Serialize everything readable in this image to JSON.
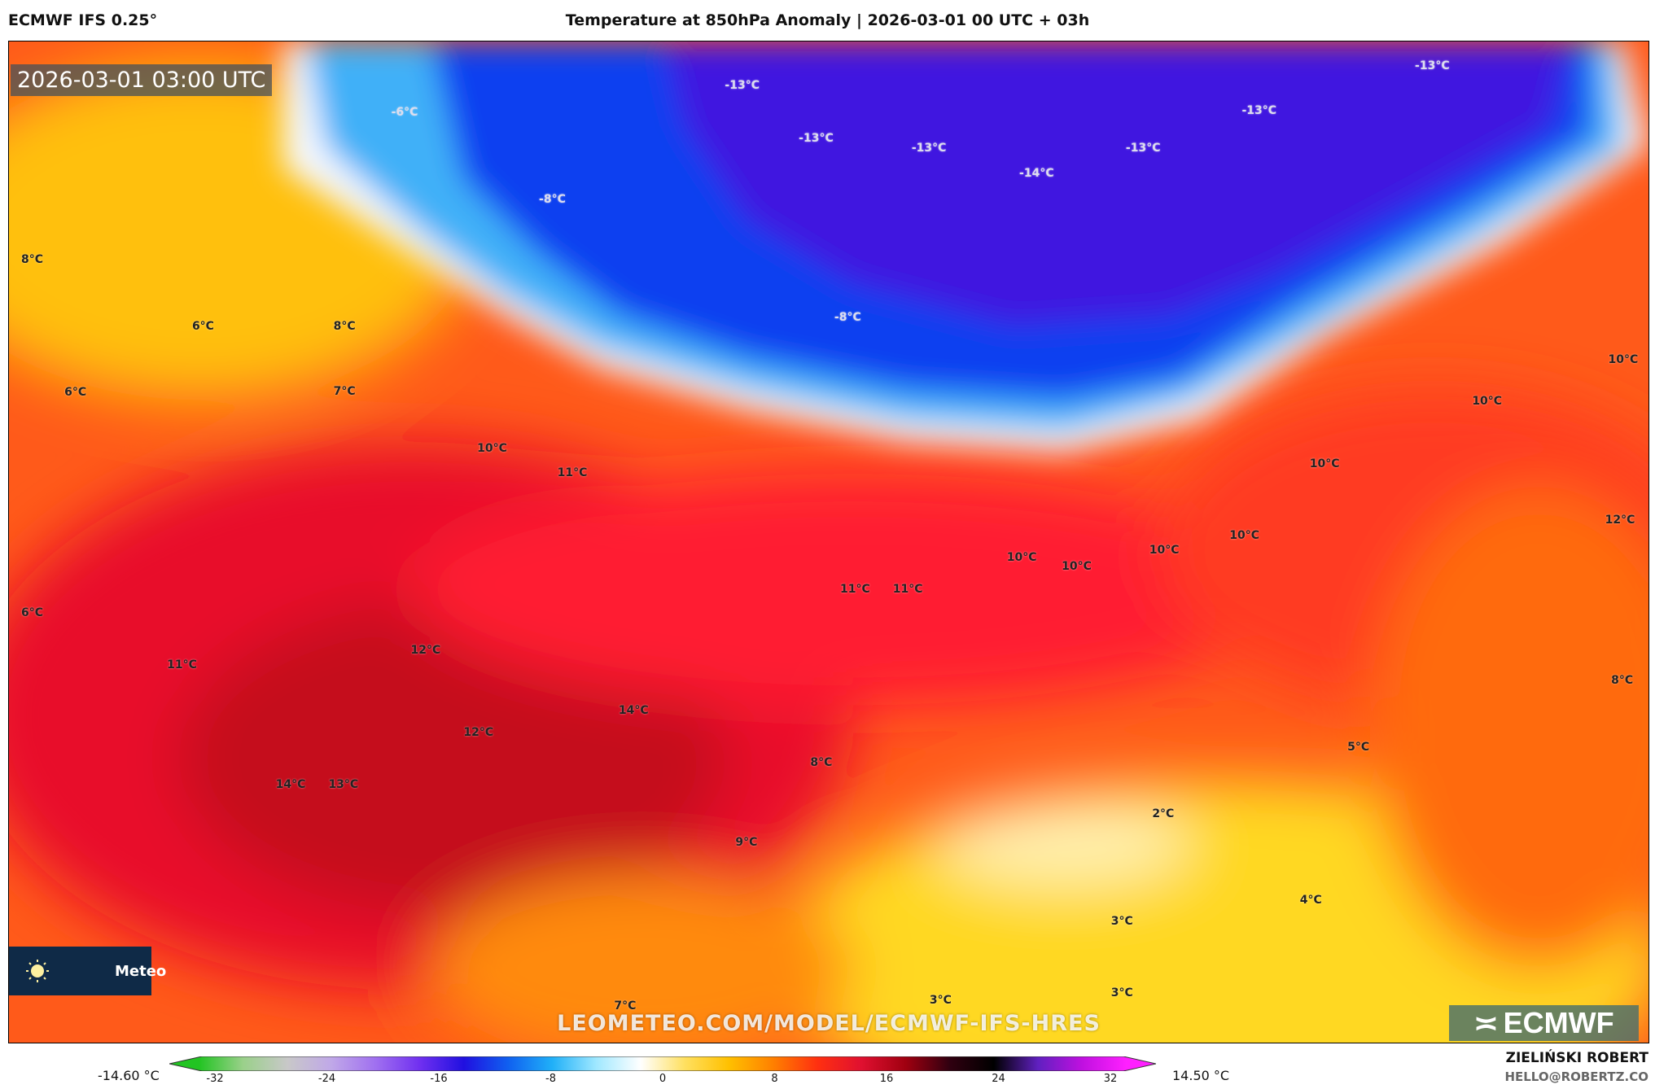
{
  "header": {
    "model": "ECMWF IFS 0.25°",
    "title": "Temperature at 850hPa Anomaly | 2026-03-01 00 UTC + 03h"
  },
  "map": {
    "timestamp": "2026-03-01 03:00 UTC",
    "watermark": "LEOMETEO.COM/MODEL/ECMWF-IFS-HRES",
    "logo_left_text": "Meteo",
    "logo_right_text": "ECMWF",
    "labels": [
      "-6°C",
      "-13°C",
      "-13°C",
      "-13°C",
      "-14°C",
      "-13°C",
      "-13°C",
      "-13°C",
      "-8°C",
      "-8°C",
      "8°C",
      "6°C",
      "8°C",
      "7°C",
      "6°C",
      "10°C",
      "11°C",
      "10°C",
      "10°C",
      "10°C",
      "12°C",
      "10°C",
      "10°C",
      "10°C",
      "10°C",
      "11°C",
      "11°C",
      "6°C",
      "11°C",
      "12°C",
      "14°C",
      "12°C",
      "8°C",
      "5°C",
      "14°C",
      "13°C",
      "8°C",
      "2°C",
      "9°C",
      "4°C",
      "3°C",
      "3°C",
      "3°C",
      "7°C"
    ]
  },
  "colorbar": {
    "min_label": "-14.60 °C",
    "max_label": "14.50 °C",
    "ticks": [
      "-32",
      "-24",
      "-16",
      "-8",
      "0",
      "8",
      "16",
      "24",
      "32"
    ],
    "colors": [
      "#22c422",
      "#9ad08a",
      "#c8c8c8",
      "#c0a8e8",
      "#a070f0",
      "#7030f0",
      "#2010e0",
      "#1060f0",
      "#20b0f8",
      "#a0e8ff",
      "#ffffff",
      "#ffe060",
      "#ffc000",
      "#ff8000",
      "#ff3010",
      "#e01030",
      "#a00010",
      "#300010",
      "#000000",
      "#6020c0",
      "#c010e0",
      "#ff20ff"
    ]
  },
  "credits": {
    "author": "ZIELIŃSKI ROBERT",
    "email": "HELLO@ROBERTZ.CO"
  }
}
